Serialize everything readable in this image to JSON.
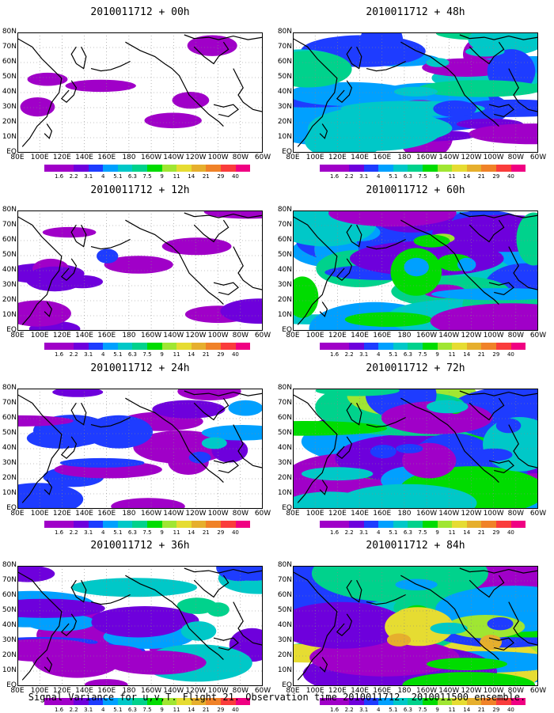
{
  "figure": {
    "caption": "Signal Variance for u,v,T. Flight 21. Observation time 2010011712. 2010011500 ensemble.",
    "lat_labels": [
      "80N",
      "70N",
      "60N",
      "50N",
      "40N",
      "30N",
      "20N",
      "10N",
      "EQ"
    ],
    "lon_labels": [
      "80E",
      "100E",
      "120E",
      "140E",
      "160E",
      "180",
      "160W",
      "140W",
      "120W",
      "100W",
      "80W",
      "60W"
    ],
    "colorbar": {
      "levels": [
        "1.6",
        "2.2",
        "3.1",
        "4",
        "5.1",
        "6.3",
        "7.5",
        "9",
        "11",
        "14",
        "21",
        "29",
        "40"
      ],
      "colors": [
        "#a000c8",
        "#6e00dc",
        "#1e3cff",
        "#00a0ff",
        "#00c8c8",
        "#00d28c",
        "#00dc00",
        "#a0e632",
        "#e6dc32",
        "#e6af2d",
        "#f08228",
        "#fa3c3c",
        "#f00082"
      ]
    },
    "panels": [
      {
        "title": "2010011712 + 00h",
        "intensity": 0
      },
      {
        "title": "2010011712 + 12h",
        "intensity": 1
      },
      {
        "title": "2010011712 + 24h",
        "intensity": 2
      },
      {
        "title": "2010011712 + 36h",
        "intensity": 3
      },
      {
        "title": "2010011712 + 48h",
        "intensity": 4
      },
      {
        "title": "2010011712 + 60h",
        "intensity": 5
      },
      {
        "title": "2010011712 + 72h",
        "intensity": 6
      },
      {
        "title": "2010011712 + 84h",
        "intensity": 7
      }
    ]
  }
}
